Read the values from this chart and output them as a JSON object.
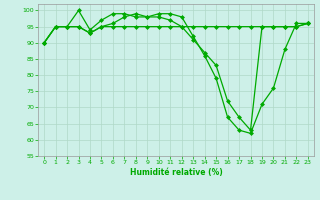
{
  "xlabel": "Humidité relative (%)",
  "background_color": "#cdf0e8",
  "grid_color": "#b0d8c8",
  "line_color": "#00aa00",
  "xlim": [
    -0.5,
    23.5
  ],
  "ylim": [
    55,
    102
  ],
  "yticks": [
    55,
    60,
    65,
    70,
    75,
    80,
    85,
    90,
    95,
    100
  ],
  "xticks": [
    0,
    1,
    2,
    3,
    4,
    5,
    6,
    7,
    8,
    9,
    10,
    11,
    12,
    13,
    14,
    15,
    16,
    17,
    18,
    19,
    20,
    21,
    22,
    23
  ],
  "line1": [
    90,
    95,
    95,
    100,
    94,
    97,
    99,
    99,
    98,
    98,
    99,
    99,
    98,
    92,
    86,
    79,
    67,
    63,
    62,
    71,
    76,
    88,
    96,
    96
  ],
  "line2": [
    90,
    95,
    95,
    95,
    93,
    95,
    96,
    98,
    99,
    98,
    98,
    97,
    95,
    91,
    87,
    83,
    72,
    67,
    63,
    95,
    95,
    95,
    95,
    96
  ],
  "line3": [
    90,
    95,
    95,
    95,
    93,
    95,
    95,
    95,
    95,
    95,
    95,
    95,
    95,
    95,
    95,
    95,
    95,
    95,
    95,
    95,
    95,
    95,
    95,
    96
  ]
}
